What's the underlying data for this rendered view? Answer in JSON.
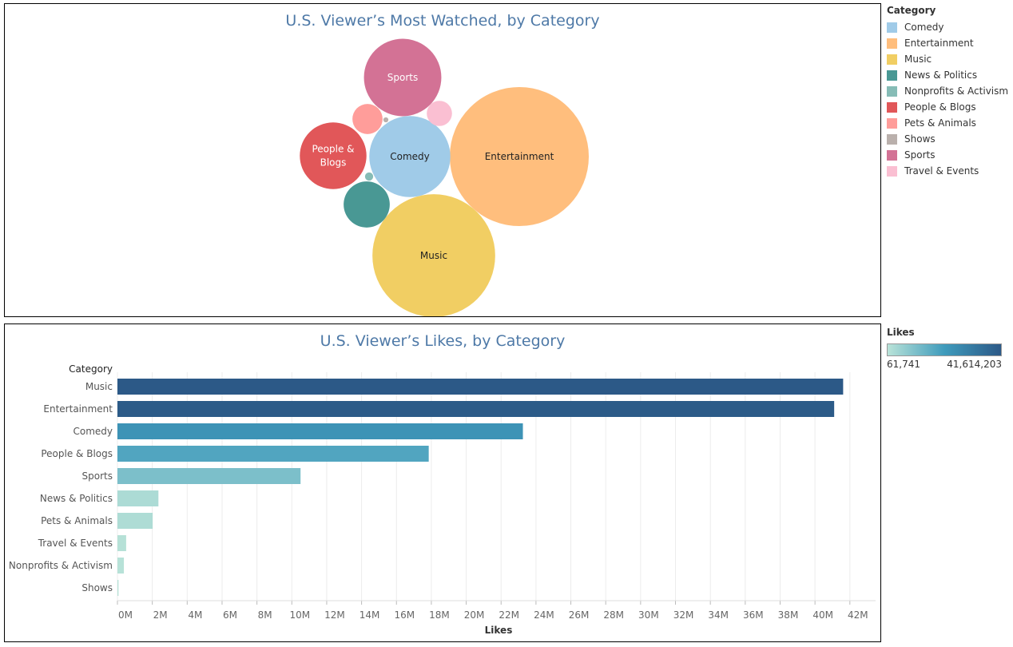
{
  "top_chart": {
    "title": "U.S. Viewer’s Most Watched, by Category"
  },
  "bottom_chart": {
    "title": "U.S. Viewer’s Likes, by Category",
    "category_header": "Category",
    "xlabel": "Likes"
  },
  "category_legend": {
    "title": "Category",
    "items": [
      {
        "label": "Comedy",
        "color": "#a0cbe8"
      },
      {
        "label": "Entertainment",
        "color": "#ffbe7d"
      },
      {
        "label": "Music",
        "color": "#f1ce63"
      },
      {
        "label": "News & Politics",
        "color": "#499894"
      },
      {
        "label": "Nonprofits & Activism",
        "color": "#86bcb6"
      },
      {
        "label": "People & Blogs",
        "color": "#e15759"
      },
      {
        "label": "Pets & Animals",
        "color": "#ff9d9a"
      },
      {
        "label": "Shows",
        "color": "#bab0ac"
      },
      {
        "label": "Sports",
        "color": "#d37295"
      },
      {
        "label": "Travel & Events",
        "color": "#fabfd2"
      }
    ]
  },
  "likes_legend": {
    "title": "Likes",
    "min_label": "61,741",
    "max_label": "41,614,203",
    "min_color": "#b9e3d8",
    "mid_color": "#3f9bbc",
    "max_color": "#2c5987"
  },
  "chart_data": [
    {
      "type": "bubble",
      "title": "U.S. Viewer’s Most Watched, by Category",
      "bubbles": [
        {
          "category": "Entertainment",
          "label": "Entertainment",
          "relative_size": 1.0
        },
        {
          "category": "Music",
          "label": "Music",
          "relative_size": 0.78
        },
        {
          "category": "Comedy",
          "label": "Comedy",
          "relative_size": 0.34
        },
        {
          "category": "Sports",
          "label": "Sports",
          "relative_size": 0.31
        },
        {
          "category": "People & Blogs",
          "label": "People & Blogs",
          "relative_size": 0.23
        },
        {
          "category": "News & Politics",
          "label": "",
          "relative_size": 0.11
        },
        {
          "category": "Pets & Animals",
          "label": "",
          "relative_size": 0.047
        },
        {
          "category": "Travel & Events",
          "label": "",
          "relative_size": 0.033
        },
        {
          "category": "Nonprofits & Activism",
          "label": "",
          "relative_size": 0.0035
        },
        {
          "category": "Shows",
          "label": "",
          "relative_size": 0.0013
        }
      ]
    },
    {
      "type": "bar",
      "orientation": "horizontal",
      "title": "U.S. Viewer’s Likes, by Category",
      "xlabel": "Likes",
      "ylabel": "Category",
      "categories": [
        "Music",
        "Entertainment",
        "Comedy",
        "People & Blogs",
        "Sports",
        "News & Politics",
        "Pets & Animals",
        "Travel & Events",
        "Nonprofits & Activism",
        "Shows"
      ],
      "values": [
        41614203,
        41100000,
        23250000,
        17850000,
        10500000,
        2350000,
        2020000,
        500000,
        370000,
        61741
      ],
      "xlim": [
        0,
        42000000
      ],
      "x_ticks": [
        "0M",
        "2M",
        "4M",
        "6M",
        "8M",
        "10M",
        "12M",
        "14M",
        "16M",
        "18M",
        "20M",
        "22M",
        "24M",
        "26M",
        "28M",
        "30M",
        "32M",
        "34M",
        "36M",
        "38M",
        "40M",
        "42M"
      ],
      "grid": true
    }
  ]
}
